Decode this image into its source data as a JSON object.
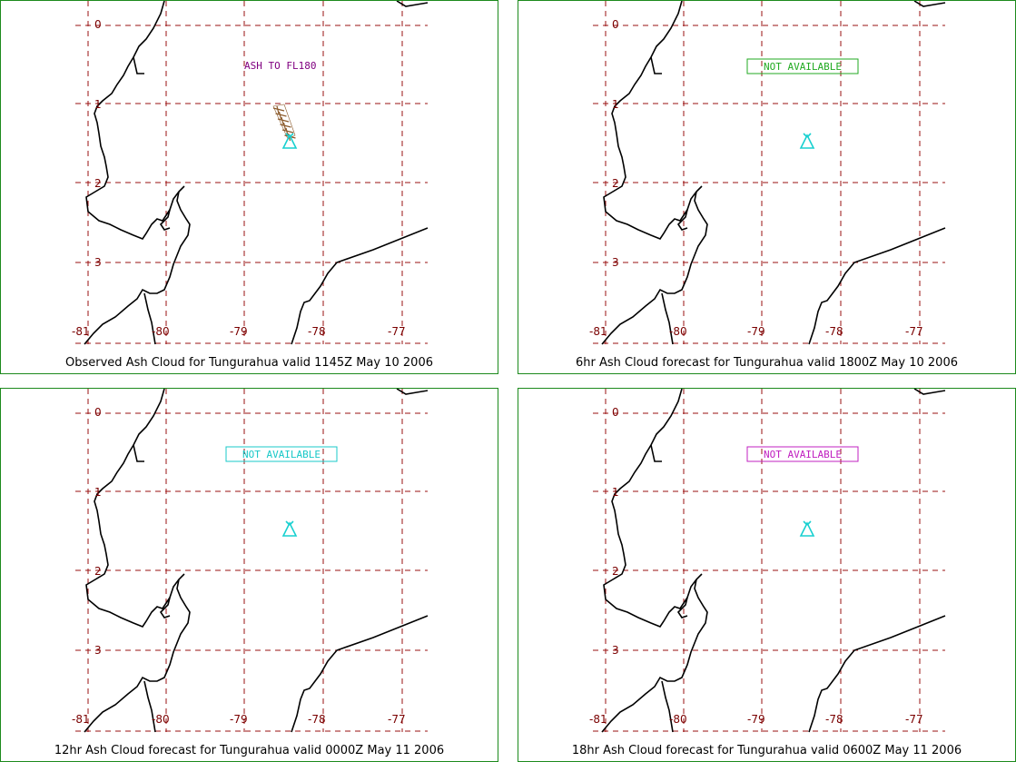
{
  "panels": [
    {
      "title": "Observed Ash Cloud for Tungurahua valid 1145Z May 10 2006",
      "annotation": {
        "text": "ASH TO FL180",
        "color": "#800080",
        "boxed": false
      },
      "ash_cloud": true
    },
    {
      "title": "6hr Ash Cloud forecast for Tungurahua valid 1800Z May 10 2006",
      "annotation": {
        "text": "NOT AVAILABLE",
        "color": "#22aa22",
        "boxed": true
      },
      "ash_cloud": false
    },
    {
      "title": "12hr Ash Cloud forecast for Tungurahua valid 0000Z May 11 2006",
      "annotation": {
        "text": "NOT AVAILABLE",
        "color": "#18c8c8",
        "boxed": true
      },
      "ash_cloud": false
    },
    {
      "title": "18hr Ash Cloud forecast for Tungurahua valid 0600Z May 11 2006",
      "annotation": {
        "text": "NOT AVAILABLE",
        "color": "#c020c0",
        "boxed": true
      },
      "ash_cloud": false
    }
  ],
  "grid": {
    "lat_labels": [
      "0",
      "1",
      "2",
      "3"
    ],
    "lon_labels": [
      "-81",
      "-80",
      "-79",
      "-78",
      "-77"
    ]
  },
  "colors": {
    "grid": "#9a1010",
    "coastline": "#000000",
    "volcano": "#18d0d0",
    "ash_cloud": "#8b5a2b",
    "panel_border": "#1d8a1d"
  },
  "volcano_icon": "volcano-triangle-icon"
}
